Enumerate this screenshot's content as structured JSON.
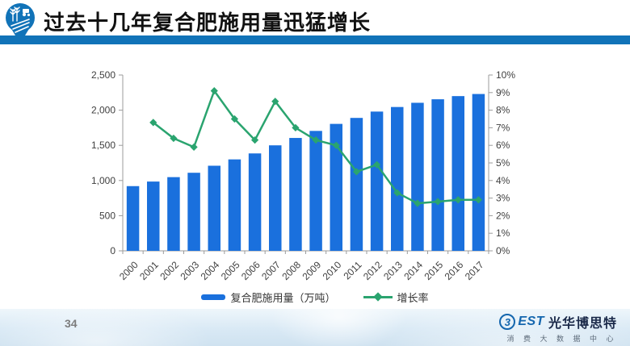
{
  "slide": {
    "title": "过去十几年复合肥施用量迅猛增长",
    "page_number": "34",
    "accent_color": "#1173b8"
  },
  "legend": {
    "bar_label": "复合肥施用量（万吨）",
    "line_label": "增长率"
  },
  "chart_data": {
    "type": "bar",
    "subtype": "bar+line combo, dual axis",
    "categories": [
      "2000",
      "2001",
      "2002",
      "2003",
      "2004",
      "2005",
      "2006",
      "2007",
      "2008",
      "2009",
      "2010",
      "2011",
      "2012",
      "2013",
      "2014",
      "2015",
      "2016",
      "2017"
    ],
    "series": [
      {
        "name": "复合肥施用量（万吨）",
        "type": "bar",
        "axis": "left",
        "color": "#1a70dd",
        "values": [
          920,
          985,
          1048,
          1110,
          1210,
          1300,
          1385,
          1500,
          1605,
          1705,
          1805,
          1890,
          1980,
          2045,
          2105,
          2155,
          2200,
          2230
        ]
      },
      {
        "name": "增长率",
        "type": "line",
        "axis": "right",
        "color": "#2aa46f",
        "marker": "diamond",
        "x": [
          "2001",
          "2002",
          "2003",
          "2004",
          "2005",
          "2006",
          "2007",
          "2008",
          "2009",
          "2010",
          "2011",
          "2012",
          "2013",
          "2014",
          "2015",
          "2016",
          "2017"
        ],
        "values": [
          7.3,
          6.4,
          5.9,
          9.1,
          7.5,
          6.3,
          8.5,
          7.0,
          6.3,
          6.0,
          4.5,
          4.9,
          3.3,
          2.7,
          2.8,
          2.9,
          2.9
        ]
      }
    ],
    "left_axis": {
      "min": 0,
      "max": 2500,
      "step": 500,
      "tick_labels": [
        "0",
        "500",
        "1,000",
        "1,500",
        "2,000",
        "2,500"
      ]
    },
    "right_axis": {
      "min": 0,
      "max": 10,
      "step": 1,
      "tick_labels": [
        "0%",
        "1%",
        "2%",
        "3%",
        "4%",
        "5%",
        "6%",
        "7%",
        "8%",
        "9%",
        "10%"
      ]
    },
    "grid": false,
    "legend_position": "bottom",
    "title": ""
  },
  "footer": {
    "logo": {
      "b_glyph": "3",
      "rest": "EST",
      "cn_name": "光华博思特",
      "subtitle": "消 费 大 数 据 中 心"
    }
  }
}
